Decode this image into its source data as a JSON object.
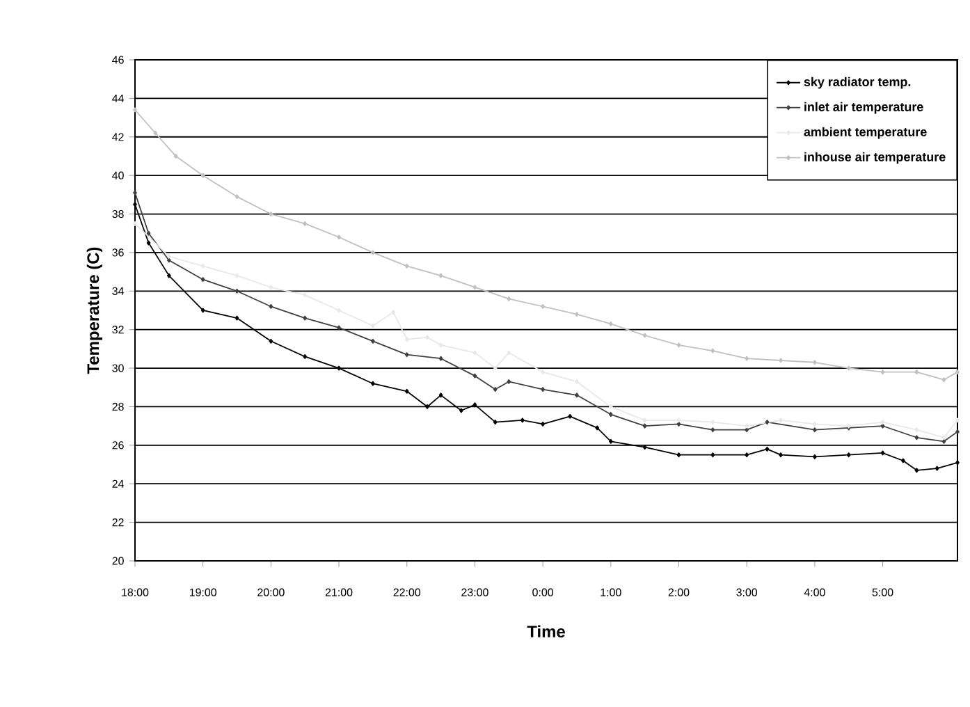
{
  "chart_data": {
    "type": "line",
    "xlabel": "Time",
    "ylabel": "Temperature (C)",
    "xlim": [
      "2000-01-01T18:00",
      "2000-01-02T06:06"
    ],
    "ylim": [
      20,
      46
    ],
    "xticks": [
      {
        "value": "2000-01-01T18:00",
        "label": "18:00"
      },
      {
        "value": "2000-01-01T19:00",
        "label": "19:00"
      },
      {
        "value": "2000-01-01T20:00",
        "label": "20:00"
      },
      {
        "value": "2000-01-01T21:00",
        "label": "21:00"
      },
      {
        "value": "2000-01-01T22:00",
        "label": "22:00"
      },
      {
        "value": "2000-01-01T23:00",
        "label": "23:00"
      },
      {
        "value": "2000-01-02T00:00",
        "label": "0:00"
      },
      {
        "value": "2000-01-02T01:00",
        "label": "1:00"
      },
      {
        "value": "2000-01-02T02:00",
        "label": "2:00"
      },
      {
        "value": "2000-01-02T03:00",
        "label": "3:00"
      },
      {
        "value": "2000-01-02T04:00",
        "label": "4:00"
      },
      {
        "value": "2000-01-02T05:00",
        "label": "5:00"
      }
    ],
    "yticks": [
      20,
      22,
      24,
      26,
      28,
      30,
      32,
      34,
      36,
      38,
      40,
      42,
      44,
      46
    ],
    "grid": "y",
    "legend": "top right",
    "marker": "diamond",
    "line_style": "solid",
    "series": [
      {
        "name": "sky radiator temp.",
        "color": "#000000",
        "x": [
          "2000-01-01T18:00",
          "2000-01-01T18:12",
          "2000-01-01T18:30",
          "2000-01-01T19:00",
          "2000-01-01T19:30",
          "2000-01-01T20:00",
          "2000-01-01T20:30",
          "2000-01-01T21:00",
          "2000-01-01T21:30",
          "2000-01-01T22:00",
          "2000-01-01T22:18",
          "2000-01-01T22:30",
          "2000-01-01T22:48",
          "2000-01-01T23:00",
          "2000-01-01T23:18",
          "2000-01-01T23:42",
          "2000-01-02T00:00",
          "2000-01-02T00:24",
          "2000-01-02T00:48",
          "2000-01-02T01:00",
          "2000-01-02T01:30",
          "2000-01-02T02:00",
          "2000-01-02T02:30",
          "2000-01-02T03:00",
          "2000-01-02T03:18",
          "2000-01-02T03:30",
          "2000-01-02T04:00",
          "2000-01-02T04:30",
          "2000-01-02T05:00",
          "2000-01-02T05:18",
          "2000-01-02T05:30",
          "2000-01-02T05:48",
          "2000-01-02T06:06"
        ],
        "values": [
          38.5,
          36.5,
          34.8,
          33.0,
          32.6,
          31.4,
          30.6,
          30.0,
          29.2,
          28.8,
          28.0,
          28.6,
          27.8,
          28.1,
          27.2,
          27.3,
          27.1,
          27.5,
          26.9,
          26.2,
          25.9,
          25.5,
          25.5,
          25.5,
          25.8,
          25.5,
          25.4,
          25.5,
          25.6,
          25.2,
          24.7,
          24.8,
          25.1
        ]
      },
      {
        "name": "inlet air temperature",
        "color": "#404040",
        "x": [
          "2000-01-01T18:00",
          "2000-01-01T18:12",
          "2000-01-01T18:30",
          "2000-01-01T19:00",
          "2000-01-01T19:30",
          "2000-01-01T20:00",
          "2000-01-01T20:30",
          "2000-01-01T21:00",
          "2000-01-01T21:30",
          "2000-01-01T22:00",
          "2000-01-01T22:30",
          "2000-01-01T23:00",
          "2000-01-01T23:18",
          "2000-01-01T23:30",
          "2000-01-02T00:00",
          "2000-01-02T00:30",
          "2000-01-02T01:00",
          "2000-01-02T01:30",
          "2000-01-02T02:00",
          "2000-01-02T02:30",
          "2000-01-02T03:00",
          "2000-01-02T03:18",
          "2000-01-02T04:00",
          "2000-01-02T04:30",
          "2000-01-02T05:00",
          "2000-01-02T05:30",
          "2000-01-02T05:54",
          "2000-01-02T06:06"
        ],
        "values": [
          39.1,
          37.0,
          35.6,
          34.6,
          34.0,
          33.2,
          32.6,
          32.1,
          31.4,
          30.7,
          30.5,
          29.6,
          28.9,
          29.3,
          28.9,
          28.6,
          27.6,
          27.0,
          27.1,
          26.8,
          26.8,
          27.2,
          26.8,
          26.9,
          27.0,
          26.4,
          26.2,
          26.7
        ]
      },
      {
        "name": "ambient temperature",
        "color": "#e8e8e8",
        "x": [
          "2000-01-01T18:00",
          "2000-01-01T18:30",
          "2000-01-01T19:00",
          "2000-01-01T19:30",
          "2000-01-01T20:00",
          "2000-01-01T20:30",
          "2000-01-01T21:00",
          "2000-01-01T21:30",
          "2000-01-01T21:48",
          "2000-01-01T22:00",
          "2000-01-01T22:18",
          "2000-01-01T22:30",
          "2000-01-01T23:00",
          "2000-01-01T23:18",
          "2000-01-01T23:30",
          "2000-01-02T00:00",
          "2000-01-02T00:30",
          "2000-01-02T01:00",
          "2000-01-02T01:30",
          "2000-01-02T02:00",
          "2000-01-02T02:30",
          "2000-01-02T03:00",
          "2000-01-02T03:30",
          "2000-01-02T04:00",
          "2000-01-02T04:30",
          "2000-01-02T05:00",
          "2000-01-02T05:30",
          "2000-01-02T05:54",
          "2000-01-02T06:06"
        ],
        "values": [
          37.5,
          35.8,
          35.3,
          34.8,
          34.2,
          33.8,
          33.0,
          32.2,
          32.9,
          31.5,
          31.6,
          31.2,
          30.8,
          30.0,
          30.8,
          29.8,
          29.3,
          28.0,
          27.3,
          27.3,
          27.2,
          27.0,
          27.3,
          27.1,
          27.0,
          27.2,
          26.8,
          26.4,
          27.3
        ]
      },
      {
        "name": "inhouse air temperature",
        "color": "#c0c0c0",
        "x": [
          "2000-01-01T18:00",
          "2000-01-01T18:18",
          "2000-01-01T18:36",
          "2000-01-01T19:00",
          "2000-01-01T19:30",
          "2000-01-01T20:00",
          "2000-01-01T20:30",
          "2000-01-01T21:00",
          "2000-01-01T21:30",
          "2000-01-01T22:00",
          "2000-01-01T22:30",
          "2000-01-01T23:00",
          "2000-01-01T23:30",
          "2000-01-02T00:00",
          "2000-01-02T00:30",
          "2000-01-02T01:00",
          "2000-01-02T01:30",
          "2000-01-02T02:00",
          "2000-01-02T02:30",
          "2000-01-02T03:00",
          "2000-01-02T03:30",
          "2000-01-02T04:00",
          "2000-01-02T04:30",
          "2000-01-02T05:00",
          "2000-01-02T05:30",
          "2000-01-02T05:54",
          "2000-01-02T06:06"
        ],
        "values": [
          43.4,
          42.2,
          41.0,
          40.0,
          38.9,
          38.0,
          37.5,
          36.8,
          36.0,
          35.3,
          34.8,
          34.2,
          33.6,
          33.2,
          32.8,
          32.3,
          31.7,
          31.2,
          30.9,
          30.5,
          30.4,
          30.3,
          30.0,
          29.8,
          29.8,
          29.4,
          29.8
        ]
      }
    ]
  }
}
